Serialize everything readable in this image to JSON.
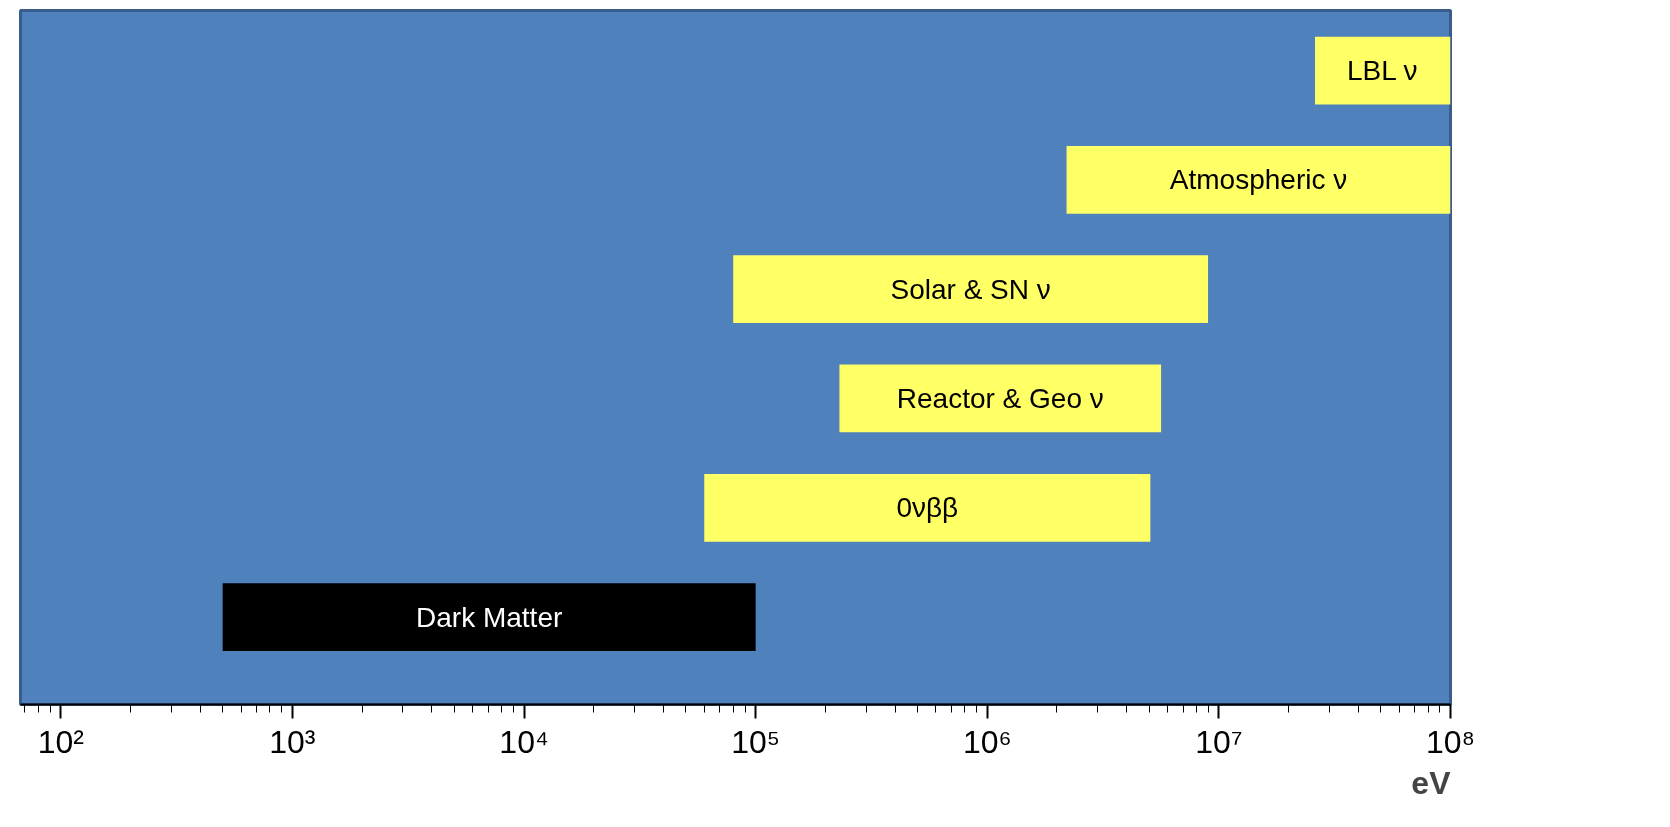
{
  "chart_data": {
    "type": "bar",
    "orientation": "horizontal",
    "log": "x",
    "xlabel": "eV",
    "categories": [
      "LBL ν",
      "Atmospheric ν",
      "Solar & SN ν",
      "Reactor & Geo ν",
      "0νββ",
      "Dark Matter"
    ],
    "base": [
      26000000,
      2200000,
      80000,
      230000,
      60000,
      500
    ],
    "values": [
      74000000,
      97800000,
      8900000,
      5400000,
      5000000,
      99500
    ],
    "colors": [
      "#ffff66",
      "#ffff66",
      "#ffff66",
      "#ffff66",
      "#ffff66",
      "#000000"
    ],
    "xlim": [
      67,
      100000000
    ],
    "xticks": [
      {
        "value": 100,
        "label": "10²"
      },
      {
        "value": 1000,
        "label": "10³"
      },
      {
        "value": 10000,
        "label": "10⁴"
      },
      {
        "value": 100000,
        "label": "10⁵"
      },
      {
        "value": 1000000,
        "label": "10⁶"
      },
      {
        "value": 10000000,
        "label": "10⁷"
      },
      {
        "value": 100000000,
        "label": "10⁸"
      }
    ],
    "tick_labels": "x",
    "grid": false
  }
}
